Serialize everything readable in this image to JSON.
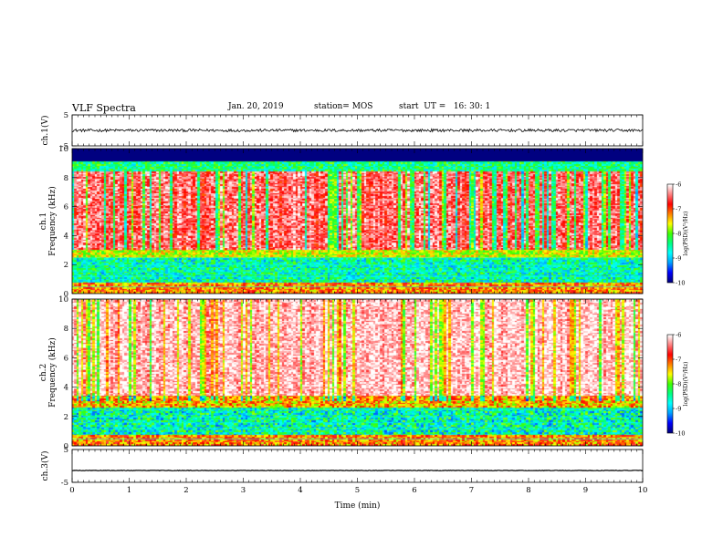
{
  "header": {
    "title": "VLF Spectra",
    "date": "Jan. 20, 2019",
    "station": "station= MOS",
    "start": "start  UT =   16: 30: 1"
  },
  "chart_data": {
    "type": "heatmap",
    "xlabel": "Time (min)",
    "xlim": [
      0,
      10
    ],
    "x_ticks": [
      "0",
      "1",
      "2",
      "3",
      "4",
      "5",
      "6",
      "7",
      "8",
      "9",
      "10"
    ],
    "panels": [
      {
        "id": "ch1-waveform",
        "type": "line",
        "ylabel": "ch.1(V)",
        "ylim": [
          -5,
          5
        ],
        "y_ticks": [
          "5",
          "-5"
        ],
        "level": 0
      },
      {
        "id": "ch1-spectrogram",
        "type": "heatmap",
        "ylabel_top": "ch.1",
        "ylabel": "Frequency (kHz)",
        "ylim": [
          0,
          10
        ],
        "y_ticks": [
          "0",
          "2",
          "4",
          "6",
          "8",
          "10"
        ],
        "colorbar_label": "log(PSD)(V²/Hz)",
        "colorbar_ticks": [
          "-6",
          "-7",
          "-8",
          "-9",
          "-10"
        ]
      },
      {
        "id": "ch2-spectrogram",
        "type": "heatmap",
        "ylabel_top": "ch.2",
        "ylabel": "Frequency (kHz)",
        "ylim": [
          0,
          10
        ],
        "y_ticks": [
          "0",
          "2",
          "4",
          "6",
          "8",
          "10"
        ],
        "colorbar_label": "log(PSD)(V²/Hz)",
        "colorbar_ticks": [
          "-6",
          "-7",
          "-8",
          "-9",
          "-10"
        ]
      },
      {
        "id": "ch3-waveform",
        "type": "line",
        "ylabel": "ch.3(V)",
        "ylim": [
          -5,
          5
        ],
        "y_ticks": [
          "5",
          "-5"
        ],
        "level": -1.4
      }
    ],
    "colorscale": [
      "#000080",
      "#0000ff",
      "#00a0ff",
      "#00ffff",
      "#00ff80",
      "#40ff00",
      "#ffff00",
      "#ff8000",
      "#ff0000",
      "#ff8080",
      "#ffffff"
    ],
    "colorscale_range": [
      -10,
      -6
    ]
  }
}
